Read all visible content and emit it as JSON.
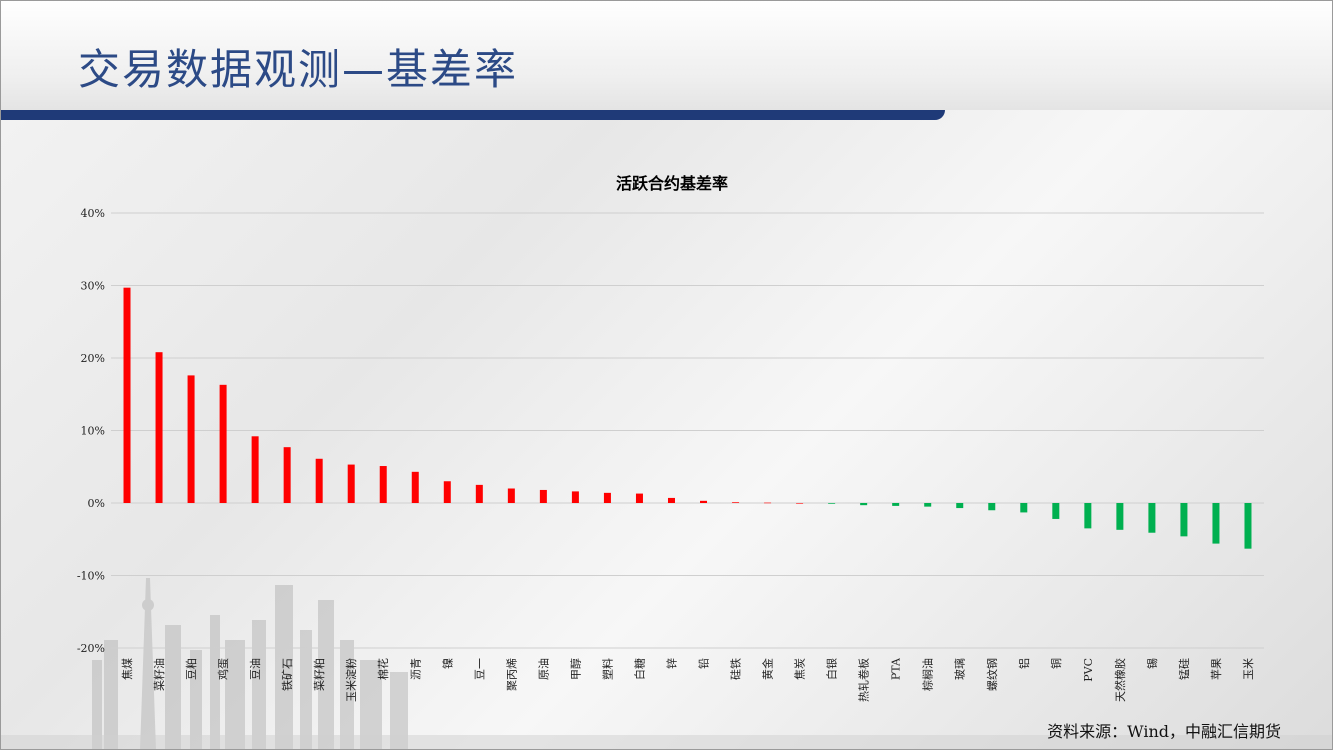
{
  "slide": {
    "title": "交易数据观测—基差率",
    "source": "资料来源：Wind，中融汇信期货"
  },
  "colors": {
    "positive": "#ff0000",
    "negative": "#00b050",
    "title_blue": "#2c4a86",
    "bar_navy": "#1f3a78"
  },
  "chart_data": {
    "type": "bar",
    "title": "活跃合约基差率",
    "xlabel": "",
    "ylabel": "",
    "ylim": [
      -20,
      40
    ],
    "yticks": [
      40,
      30,
      20,
      10,
      0,
      -10,
      -20
    ],
    "ytick_labels": [
      "40%",
      "30%",
      "20%",
      "10%",
      "0%",
      "-10%",
      "-20%"
    ],
    "grid": true,
    "legend": "none",
    "categories": [
      "焦煤",
      "菜籽油",
      "豆粕",
      "鸡蛋",
      "豆油",
      "铁矿石",
      "菜籽粕",
      "玉米淀粉",
      "棉花",
      "沥青",
      "镍",
      "豆一",
      "聚丙烯",
      "原油",
      "甲醇",
      "塑料",
      "白糖",
      "锌",
      "铅",
      "硅铁",
      "黄金",
      "焦炭",
      "白银",
      "热轧卷板",
      "PTA",
      "棕榈油",
      "玻璃",
      "螺纹钢",
      "铝",
      "铜",
      "PVC",
      "天然橡胶",
      "锡",
      "锰硅",
      "苹果",
      "玉米"
    ],
    "values": [
      29.7,
      20.8,
      17.6,
      16.3,
      9.2,
      7.7,
      6.1,
      5.3,
      5.1,
      4.3,
      3.0,
      2.5,
      2.0,
      1.8,
      1.6,
      1.4,
      1.3,
      0.7,
      0.3,
      0.1,
      0.05,
      0.0,
      -0.1,
      -0.3,
      -0.4,
      -0.5,
      -0.7,
      -1.0,
      -1.3,
      -2.2,
      -3.5,
      -3.7,
      -4.1,
      -4.6,
      -5.6,
      -6.3
    ]
  }
}
